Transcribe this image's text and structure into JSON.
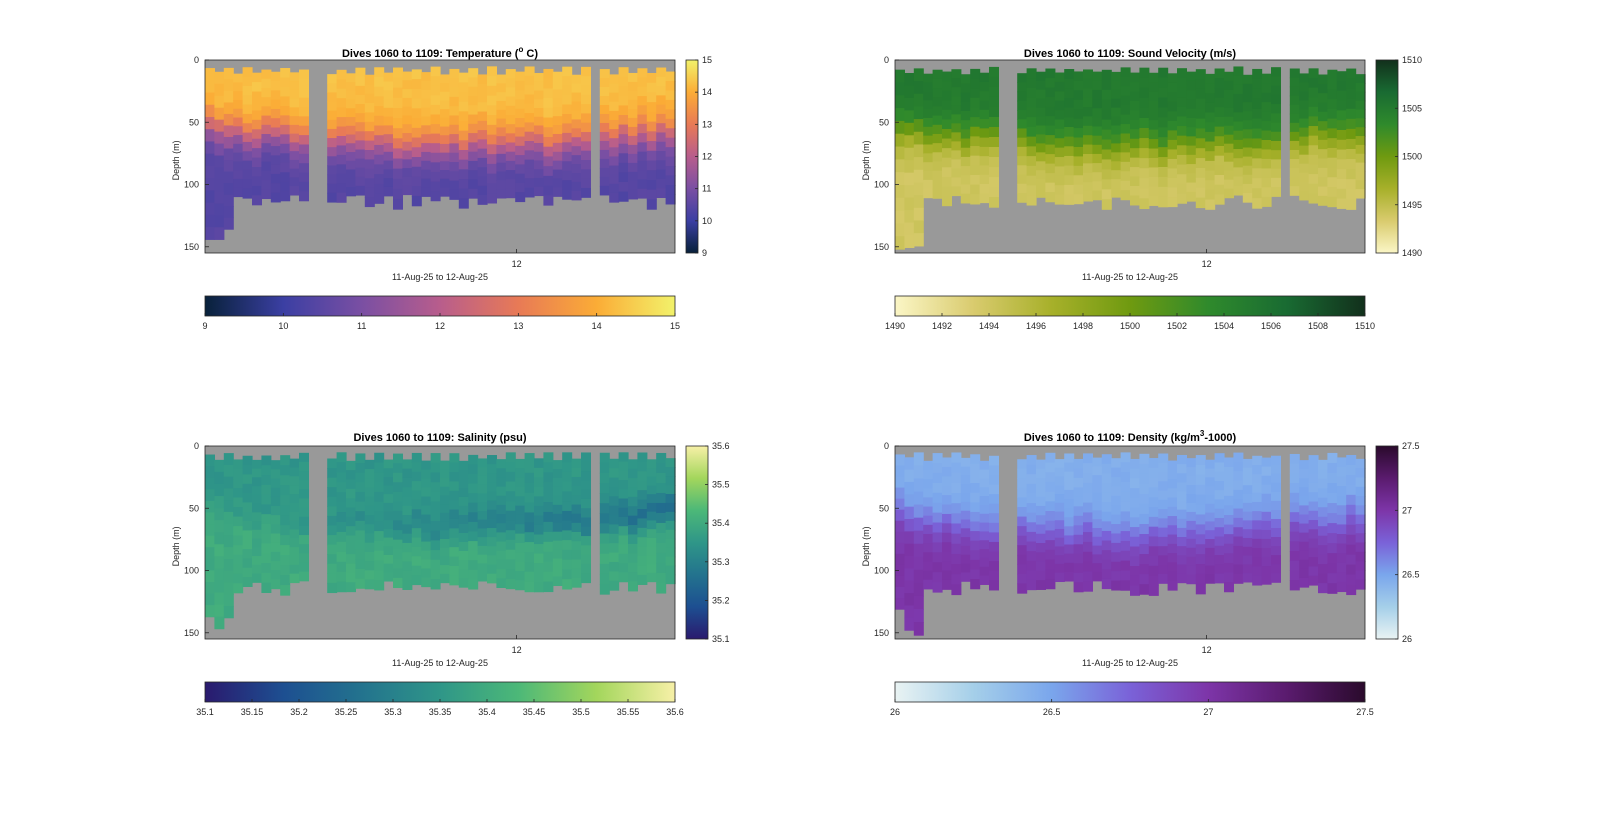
{
  "figure": {
    "background": "#ffffff",
    "nodata_color": "#999999"
  },
  "chart_data": [
    {
      "type": "heatmap",
      "id": "temperature",
      "title_main": "Dives 1060 to 1109: Temperature (",
      "title_sup": "o",
      "title_tail": " C)",
      "xlabel": "11-Aug-25 to 12-Aug-25",
      "ylabel": "Depth (m)",
      "x_ticks": [
        "12"
      ],
      "y_ticks": [
        0,
        50,
        100,
        150
      ],
      "ylim": [
        0,
        155
      ],
      "dives": 50,
      "gaps": [
        [
          11,
          12
        ],
        [
          41,
          41
        ]
      ],
      "clim": [
        9,
        15
      ],
      "colorbar_right_ticks": [
        9,
        10,
        11,
        12,
        13,
        14,
        15
      ],
      "colorbar_bottom_ticks": [
        "9",
        "10",
        "11",
        "12",
        "13",
        "14",
        "15"
      ],
      "colormap": [
        "#08213a",
        "#3b3fa3",
        "#7a4fa3",
        "#b85d8c",
        "#e87a56",
        "#fbac36",
        "#f2f26b"
      ],
      "profile": {
        "surface": 14.3,
        "deep": 10.4,
        "thermocline_depth_start": 55,
        "thermocline_depth_end": 70
      }
    },
    {
      "type": "heatmap",
      "id": "sound_velocity",
      "title_main": "Dives 1060 to 1109: Sound Velocity (m/s)",
      "title_sup": "",
      "title_tail": "",
      "xlabel": "11-Aug-25 to 12-Aug-25",
      "ylabel": "Depth (m)",
      "x_ticks": [
        "12"
      ],
      "y_ticks": [
        0,
        50,
        100,
        150
      ],
      "ylim": [
        0,
        155
      ],
      "dives": 50,
      "gaps": [
        [
          11,
          12
        ],
        [
          41,
          41
        ]
      ],
      "clim": [
        1490,
        1510
      ],
      "colorbar_right_ticks": [
        1490,
        1495,
        1500,
        1505,
        1510
      ],
      "colorbar_bottom_ticks": [
        "1490",
        "1492",
        "1494",
        "1496",
        "1498",
        "1500",
        "1502",
        "1504",
        "1506",
        "1508",
        "1510"
      ],
      "colormap": [
        "#fbf6c6",
        "#d9cb6e",
        "#a7b02a",
        "#6f9a10",
        "#2f8a2c",
        "#196b32",
        "#12301c"
      ],
      "profile": {
        "surface": 1505.2,
        "deep": 1494.0,
        "thermocline_depth_start": 55,
        "thermocline_depth_end": 70
      }
    },
    {
      "type": "heatmap",
      "id": "salinity",
      "title_main": "Dives 1060 to 1109: Salinity (psu)",
      "title_sup": "",
      "title_tail": "",
      "xlabel": "11-Aug-25 to 12-Aug-25",
      "ylabel": "Depth (m)",
      "x_ticks": [
        "12"
      ],
      "y_ticks": [
        0,
        50,
        100,
        150
      ],
      "ylim": [
        0,
        155
      ],
      "dives": 50,
      "gaps": [
        [
          11,
          12
        ],
        [
          41,
          41
        ]
      ],
      "clim": [
        35.1,
        35.6
      ],
      "colorbar_right_ticks": [
        35.1,
        35.2,
        35.3,
        35.4,
        35.5,
        35.6
      ],
      "colorbar_bottom_ticks": [
        "35.1",
        "35.15",
        "35.2",
        "35.25",
        "35.3",
        "35.35",
        "35.4",
        "35.45",
        "35.5",
        "35.55",
        "35.6"
      ],
      "colormap": [
        "#2a1a6e",
        "#1d4f91",
        "#23738e",
        "#2f9688",
        "#4cb878",
        "#a3d65c",
        "#f7f0a7"
      ],
      "profile": {
        "surface": 35.35,
        "deep": 35.4,
        "thermocline_depth_start": 50,
        "thermocline_depth_end": 65
      }
    },
    {
      "type": "heatmap",
      "id": "density",
      "title_main": "Dives 1060 to 1109: Density (kg/m",
      "title_sup": "3",
      "title_tail": "-1000)",
      "xlabel": "11-Aug-25 to 12-Aug-25",
      "ylabel": "Depth (m)",
      "x_ticks": [
        "12"
      ],
      "y_ticks": [
        0,
        50,
        100,
        150
      ],
      "ylim": [
        0,
        155
      ],
      "dives": 50,
      "gaps": [
        [
          11,
          12
        ],
        [
          41,
          41
        ]
      ],
      "clim": [
        26,
        27.5
      ],
      "colorbar_right_ticks": [
        26,
        26.5,
        27,
        27.5
      ],
      "colorbar_bottom_ticks": [
        "26",
        "26.5",
        "27",
        "27.5"
      ],
      "colormap": [
        "#e9f3f3",
        "#a5cfe9",
        "#7aa6ec",
        "#7a62d8",
        "#7d35a8",
        "#5a1b6e",
        "#2a0a2c"
      ],
      "profile": {
        "surface": 26.45,
        "deep": 27.0,
        "thermocline_depth_start": 55,
        "thermocline_depth_end": 70
      }
    }
  ]
}
